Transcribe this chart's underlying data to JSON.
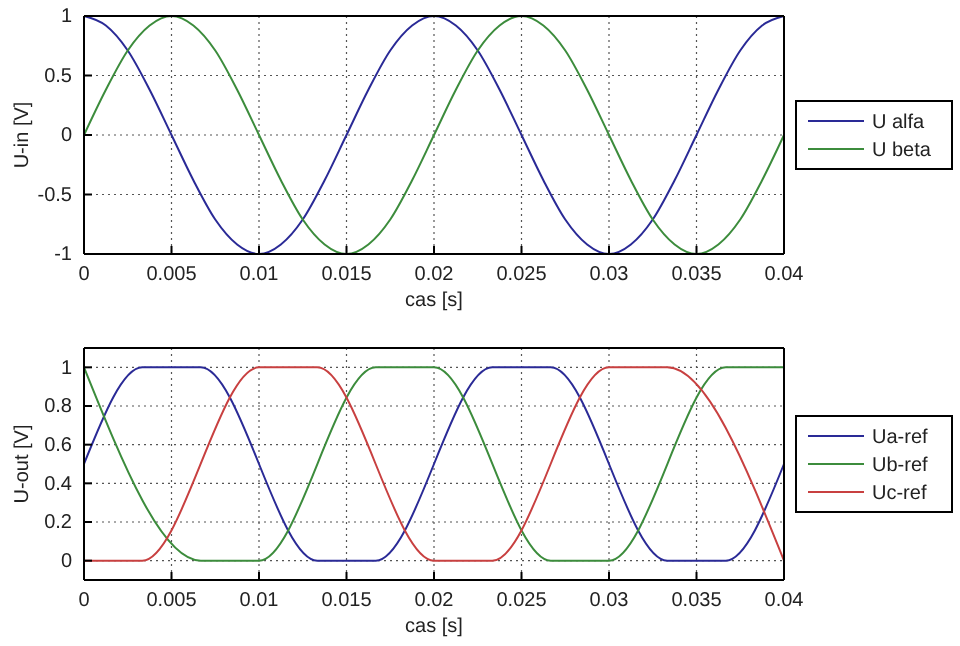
{
  "chart_data": [
    {
      "type": "line",
      "xlabel": "cas [s]",
      "ylabel": "U-in [V]",
      "xlim": [
        0,
        0.04
      ],
      "ylim": [
        -1,
        1
      ],
      "xticks": [
        0,
        0.005,
        0.01,
        0.015,
        0.02,
        0.025,
        0.03,
        0.035,
        0.04
      ],
      "yticks": [
        -1,
        -0.5,
        0,
        0.5,
        1
      ],
      "grid": true,
      "legend": "right",
      "x": [
        0,
        0.00125,
        0.0025,
        0.00375,
        0.005,
        0.00625,
        0.0075,
        0.00875,
        0.01,
        0.01125,
        0.0125,
        0.01375,
        0.015,
        0.01625,
        0.0175,
        0.01875,
        0.02,
        0.02125,
        0.0225,
        0.02375,
        0.025,
        0.02625,
        0.0275,
        0.02875,
        0.03,
        0.03125,
        0.0325,
        0.03375,
        0.035,
        0.03625,
        0.0375,
        0.03875,
        0.04
      ],
      "series": [
        {
          "name": "U alfa",
          "color": "#2a2a96",
          "values": [
            1,
            0.92,
            0.71,
            0.38,
            0,
            -0.38,
            -0.71,
            -0.92,
            -1,
            -0.92,
            -0.71,
            -0.38,
            0,
            0.38,
            0.71,
            0.92,
            1,
            0.92,
            0.71,
            0.38,
            0,
            -0.38,
            -0.71,
            -0.92,
            -1,
            -0.92,
            -0.71,
            -0.38,
            0,
            0.38,
            0.71,
            0.92,
            1
          ]
        },
        {
          "name": "U beta",
          "color": "#3c8c3c",
          "values": [
            0,
            0.38,
            0.71,
            0.92,
            1,
            0.92,
            0.71,
            0.38,
            0,
            -0.38,
            -0.71,
            -0.92,
            -1,
            -0.92,
            -0.71,
            -0.38,
            0,
            0.38,
            0.71,
            0.92,
            1,
            0.92,
            0.71,
            0.38,
            0,
            -0.38,
            -0.71,
            -0.92,
            -1,
            -0.92,
            -0.71,
            -0.38,
            0
          ]
        }
      ]
    },
    {
      "type": "line",
      "xlabel": "cas [s]",
      "ylabel": "U-out [V]",
      "xlim": [
        0,
        0.04
      ],
      "ylim": [
        -0.1,
        1.1
      ],
      "xticks": [
        0,
        0.005,
        0.01,
        0.015,
        0.02,
        0.025,
        0.03,
        0.035,
        0.04
      ],
      "yticks": [
        0,
        0.2,
        0.4,
        0.6,
        0.8,
        1
      ],
      "grid": true,
      "legend": "right",
      "series": [
        {
          "name": "Ua-ref",
          "color": "#2a2a96",
          "x": [
            0,
            0.00333,
            0.00667,
            0.01333,
            0.01667,
            0.02333,
            0.02667,
            0.03333,
            0.03667,
            0.04
          ],
          "values": [
            0.5,
            1,
            1,
            0,
            0,
            1,
            1,
            0,
            0,
            0.5
          ]
        },
        {
          "name": "Ub-ref",
          "color": "#3c8c3c",
          "x": [
            0,
            0.00667,
            0.01,
            0.01667,
            0.02,
            0.02667,
            0.03,
            0.03667,
            0.04
          ],
          "values": [
            1,
            0,
            0,
            1,
            1,
            0,
            0,
            1,
            1
          ]
        },
        {
          "name": "Uc-ref",
          "color": "#c84040",
          "x": [
            0,
            0.00333,
            0.01,
            0.01333,
            0.02,
            0.02333,
            0.03,
            0.03333,
            0.04
          ],
          "values": [
            0,
            0,
            1,
            1,
            0,
            0,
            1,
            1,
            0
          ]
        }
      ]
    }
  ]
}
